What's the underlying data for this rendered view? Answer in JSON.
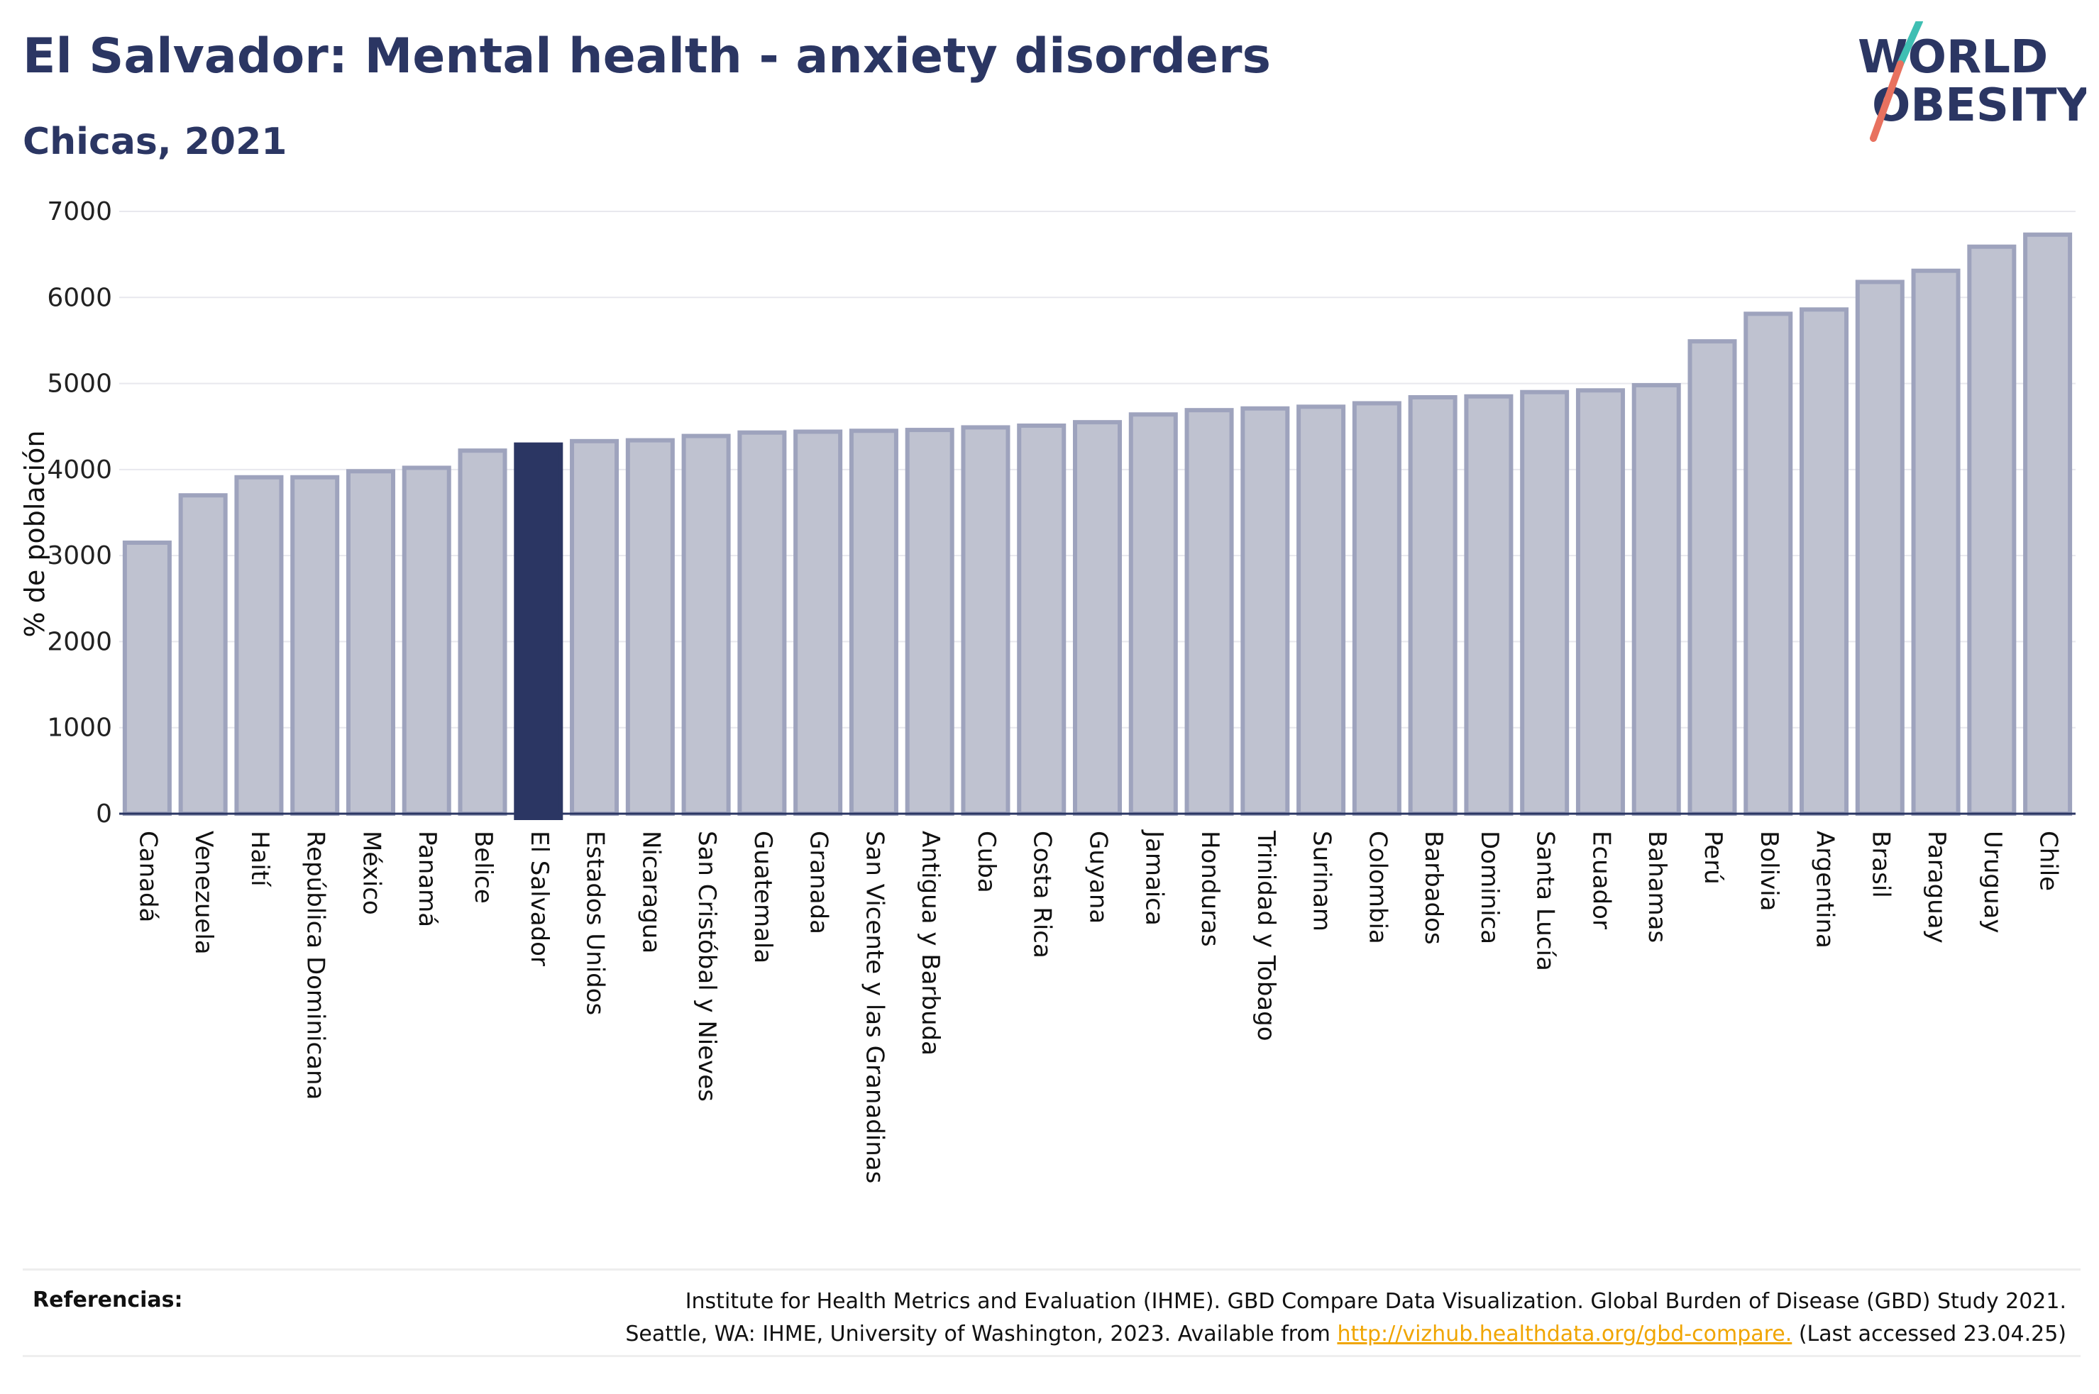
{
  "header": {
    "title": "El Salvador: Mental health - anxiety disorders",
    "subtitle": "Chicas, 2021"
  },
  "logo": {
    "line1": "WORLD",
    "line2": "OBESITY",
    "icon": "world-obesity-logo"
  },
  "colors": {
    "bar": "#bfc2d0",
    "bar_border": "#9ea3bd",
    "highlight": "#2b3663",
    "title": "#2b3663",
    "grid": "#e8e8ee",
    "link": "#f0a500",
    "logo_teal": "#3fbfb3",
    "logo_coral": "#e8715f"
  },
  "chart_data": {
    "type": "bar",
    "ylabel": "% de población",
    "ylim": [
      0,
      7000
    ],
    "yticks": [
      0,
      1000,
      2000,
      3000,
      4000,
      5000,
      6000,
      7000
    ],
    "grid": true,
    "highlight": "El Salvador",
    "categories": [
      "Canadá",
      "Venezuela",
      "Haití",
      "República Dominicana",
      "México",
      "Panamá",
      "Belice",
      "El Salvador",
      "Estados Unidos",
      "Nicaragua",
      "San Cristóbal y Nieves",
      "Guatemala",
      "Granada",
      "San Vicente y las Granadinas",
      "Antigua y Barbuda",
      "Cuba",
      "Costa Rica",
      "Guyana",
      "Jamaica",
      "Honduras",
      "Trinidad y Tobago",
      "Surinam",
      "Colombia",
      "Barbados",
      "Dominica",
      "Santa Lucía",
      "Ecuador",
      "Bahamas",
      "Perú",
      "Bolivia",
      "Argentina",
      "Brasil",
      "Paraguay",
      "Uruguay",
      "Chile"
    ],
    "values": [
      3150,
      3700,
      3910,
      3910,
      3980,
      4020,
      4220,
      4290,
      4330,
      4340,
      4390,
      4430,
      4440,
      4450,
      4460,
      4490,
      4510,
      4550,
      4640,
      4690,
      4710,
      4730,
      4770,
      4840,
      4850,
      4900,
      4920,
      4980,
      5490,
      5810,
      5860,
      6180,
      6310,
      6590,
      6730
    ]
  },
  "references": {
    "label": "Referencias:",
    "line1": "Institute for Health Metrics and Evaluation (IHME). GBD Compare Data Visualization. Global Burden of Disease (GBD) Study 2021.",
    "line2_prefix": "Seattle, WA: IHME, University of Washington, 2023. Available from ",
    "link": "http://vizhub.healthdata.org/gbd-compare.",
    "line2_suffix": " (Last accessed 23.04.25)"
  }
}
